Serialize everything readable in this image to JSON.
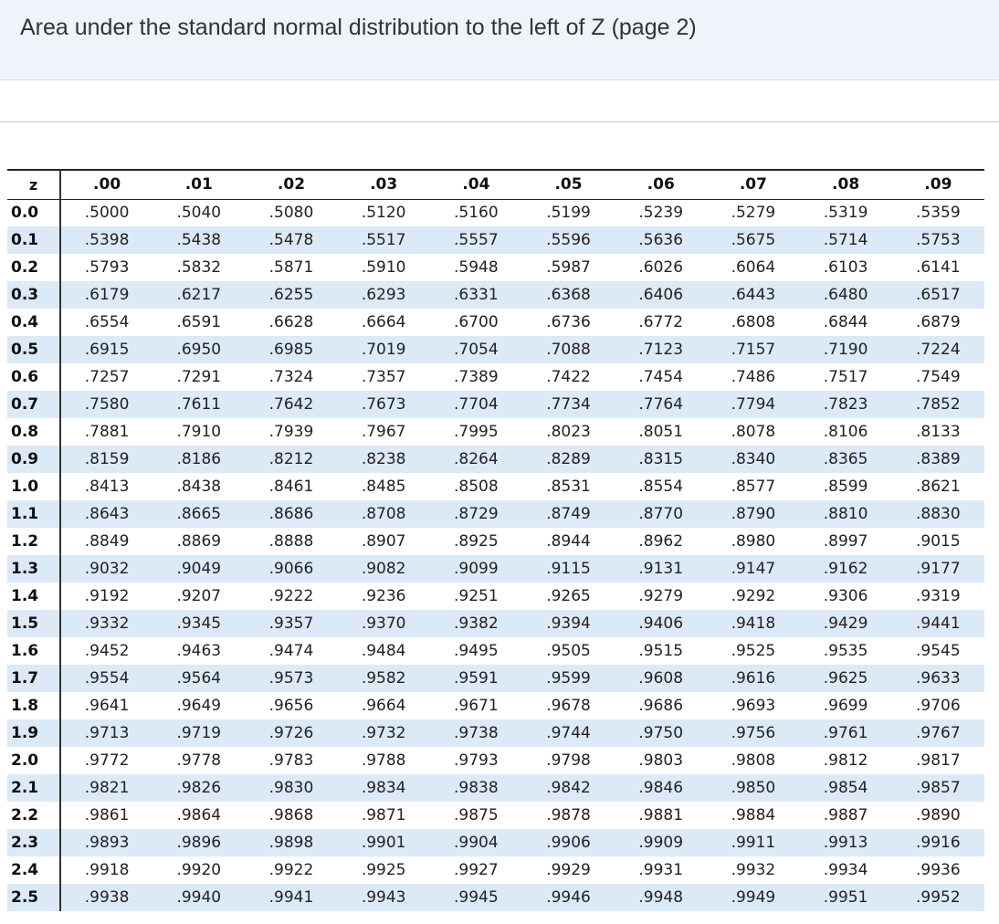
{
  "page": {
    "title": "Area under the standard normal distribution to the left of Z (page 2)"
  },
  "table": {
    "z_header": "z",
    "columns": [
      ".00",
      ".01",
      ".02",
      ".03",
      ".04",
      ".05",
      ".06",
      ".07",
      ".08",
      ".09"
    ],
    "rows": [
      {
        "z": "0.0",
        "values": [
          ".5000",
          ".5040",
          ".5080",
          ".5120",
          ".5160",
          ".5199",
          ".5239",
          ".5279",
          ".5319",
          ".5359"
        ]
      },
      {
        "z": "0.1",
        "values": [
          ".5398",
          ".5438",
          ".5478",
          ".5517",
          ".5557",
          ".5596",
          ".5636",
          ".5675",
          ".5714",
          ".5753"
        ]
      },
      {
        "z": "0.2",
        "values": [
          ".5793",
          ".5832",
          ".5871",
          ".5910",
          ".5948",
          ".5987",
          ".6026",
          ".6064",
          ".6103",
          ".6141"
        ]
      },
      {
        "z": "0.3",
        "values": [
          ".6179",
          ".6217",
          ".6255",
          ".6293",
          ".6331",
          ".6368",
          ".6406",
          ".6443",
          ".6480",
          ".6517"
        ]
      },
      {
        "z": "0.4",
        "values": [
          ".6554",
          ".6591",
          ".6628",
          ".6664",
          ".6700",
          ".6736",
          ".6772",
          ".6808",
          ".6844",
          ".6879"
        ]
      },
      {
        "z": "0.5",
        "values": [
          ".6915",
          ".6950",
          ".6985",
          ".7019",
          ".7054",
          ".7088",
          ".7123",
          ".7157",
          ".7190",
          ".7224"
        ]
      },
      {
        "z": "0.6",
        "values": [
          ".7257",
          ".7291",
          ".7324",
          ".7357",
          ".7389",
          ".7422",
          ".7454",
          ".7486",
          ".7517",
          ".7549"
        ]
      },
      {
        "z": "0.7",
        "values": [
          ".7580",
          ".7611",
          ".7642",
          ".7673",
          ".7704",
          ".7734",
          ".7764",
          ".7794",
          ".7823",
          ".7852"
        ]
      },
      {
        "z": "0.8",
        "values": [
          ".7881",
          ".7910",
          ".7939",
          ".7967",
          ".7995",
          ".8023",
          ".8051",
          ".8078",
          ".8106",
          ".8133"
        ]
      },
      {
        "z": "0.9",
        "values": [
          ".8159",
          ".8186",
          ".8212",
          ".8238",
          ".8264",
          ".8289",
          ".8315",
          ".8340",
          ".8365",
          ".8389"
        ]
      },
      {
        "z": "1.0",
        "values": [
          ".8413",
          ".8438",
          ".8461",
          ".8485",
          ".8508",
          ".8531",
          ".8554",
          ".8577",
          ".8599",
          ".8621"
        ]
      },
      {
        "z": "1.1",
        "values": [
          ".8643",
          ".8665",
          ".8686",
          ".8708",
          ".8729",
          ".8749",
          ".8770",
          ".8790",
          ".8810",
          ".8830"
        ]
      },
      {
        "z": "1.2",
        "values": [
          ".8849",
          ".8869",
          ".8888",
          ".8907",
          ".8925",
          ".8944",
          ".8962",
          ".8980",
          ".8997",
          ".9015"
        ]
      },
      {
        "z": "1.3",
        "values": [
          ".9032",
          ".9049",
          ".9066",
          ".9082",
          ".9099",
          ".9115",
          ".9131",
          ".9147",
          ".9162",
          ".9177"
        ]
      },
      {
        "z": "1.4",
        "values": [
          ".9192",
          ".9207",
          ".9222",
          ".9236",
          ".9251",
          ".9265",
          ".9279",
          ".9292",
          ".9306",
          ".9319"
        ]
      },
      {
        "z": "1.5",
        "values": [
          ".9332",
          ".9345",
          ".9357",
          ".9370",
          ".9382",
          ".9394",
          ".9406",
          ".9418",
          ".9429",
          ".9441"
        ]
      },
      {
        "z": "1.6",
        "values": [
          ".9452",
          ".9463",
          ".9474",
          ".9484",
          ".9495",
          ".9505",
          ".9515",
          ".9525",
          ".9535",
          ".9545"
        ]
      },
      {
        "z": "1.7",
        "values": [
          ".9554",
          ".9564",
          ".9573",
          ".9582",
          ".9591",
          ".9599",
          ".9608",
          ".9616",
          ".9625",
          ".9633"
        ]
      },
      {
        "z": "1.8",
        "values": [
          ".9641",
          ".9649",
          ".9656",
          ".9664",
          ".9671",
          ".9678",
          ".9686",
          ".9693",
          ".9699",
          ".9706"
        ]
      },
      {
        "z": "1.9",
        "values": [
          ".9713",
          ".9719",
          ".9726",
          ".9732",
          ".9738",
          ".9744",
          ".9750",
          ".9756",
          ".9761",
          ".9767"
        ]
      },
      {
        "z": "2.0",
        "values": [
          ".9772",
          ".9778",
          ".9783",
          ".9788",
          ".9793",
          ".9798",
          ".9803",
          ".9808",
          ".9812",
          ".9817"
        ]
      },
      {
        "z": "2.1",
        "values": [
          ".9821",
          ".9826",
          ".9830",
          ".9834",
          ".9838",
          ".9842",
          ".9846",
          ".9850",
          ".9854",
          ".9857"
        ]
      },
      {
        "z": "2.2",
        "values": [
          ".9861",
          ".9864",
          ".9868",
          ".9871",
          ".9875",
          ".9878",
          ".9881",
          ".9884",
          ".9887",
          ".9890"
        ]
      },
      {
        "z": "2.3",
        "values": [
          ".9893",
          ".9896",
          ".9898",
          ".9901",
          ".9904",
          ".9906",
          ".9909",
          ".9911",
          ".9913",
          ".9916"
        ]
      },
      {
        "z": "2.4",
        "values": [
          ".9918",
          ".9920",
          ".9922",
          ".9925",
          ".9927",
          ".9929",
          ".9931",
          ".9932",
          ".9934",
          ".9936"
        ]
      },
      {
        "z": "2.5",
        "values": [
          ".9938",
          ".9940",
          ".9941",
          ".9943",
          ".9945",
          ".9946",
          ".9948",
          ".9949",
          ".9951",
          ".9952"
        ]
      }
    ]
  }
}
